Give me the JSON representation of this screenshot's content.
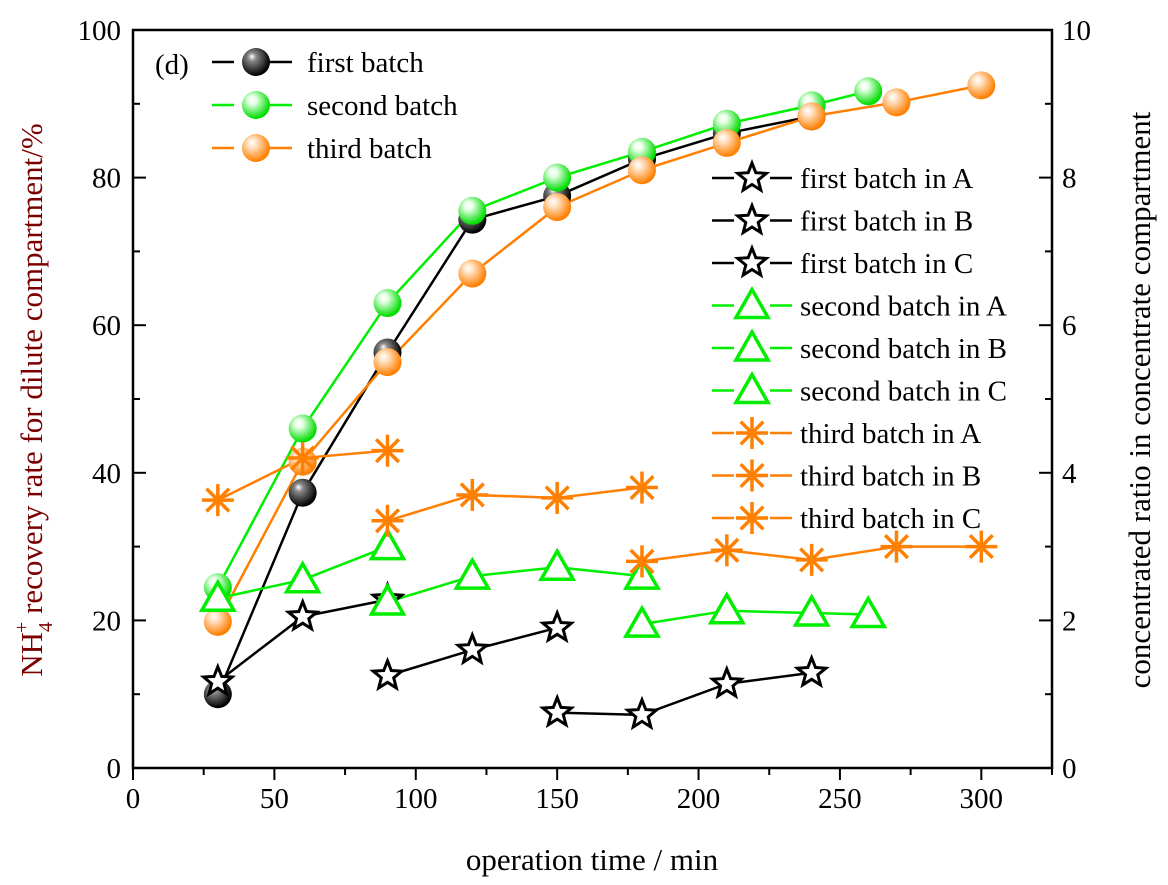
{
  "chart_data": {
    "type": "line",
    "panel_label": "(d)",
    "xlabel": "operation time / min",
    "ylabel_left_prefix": "NH",
    "ylabel_left_sub": "4",
    "ylabel_left_sup": "+",
    "ylabel_left_rest": " recovery rate for dilute compartment/%",
    "ylabel_right": "concentrated ratio in concentrate compartment",
    "xlim": [
      0,
      325
    ],
    "ylim_left": [
      0,
      100
    ],
    "ylim_right": [
      0,
      10
    ],
    "xticks": [
      0,
      50,
      100,
      150,
      200,
      250,
      300
    ],
    "yticks_left": [
      0,
      20,
      40,
      60,
      80,
      100
    ],
    "yticks_right": [
      0,
      2,
      4,
      6,
      8,
      10
    ],
    "grid": false,
    "colors": {
      "black": "#000000",
      "green": "#00ee00",
      "orange": "#ff7f00",
      "left_label": "#7a0000"
    },
    "series": [
      {
        "name": "first batch",
        "axis": "left",
        "color": "#000000",
        "marker": "sphere",
        "legend": 1,
        "points": [
          [
            30,
            10
          ],
          [
            60,
            37.3
          ],
          [
            90,
            56.3
          ],
          [
            120,
            74.3
          ],
          [
            150,
            77.5
          ],
          [
            180,
            82.5
          ],
          [
            210,
            86
          ],
          [
            240,
            88.3
          ]
        ]
      },
      {
        "name": "second batch",
        "axis": "left",
        "color": "#00ee00",
        "marker": "sphere",
        "legend": 1,
        "points": [
          [
            30,
            24.5
          ],
          [
            60,
            46
          ],
          [
            90,
            63
          ],
          [
            120,
            75.5
          ],
          [
            150,
            80
          ],
          [
            180,
            83.5
          ],
          [
            210,
            87.3
          ],
          [
            240,
            89.8
          ],
          [
            260,
            91.7
          ]
        ]
      },
      {
        "name": "third batch",
        "axis": "left",
        "color": "#ff7f00",
        "marker": "sphere",
        "legend": 1,
        "points": [
          [
            30,
            19.8
          ],
          [
            60,
            41.5
          ],
          [
            90,
            55
          ],
          [
            120,
            67
          ],
          [
            150,
            76
          ],
          [
            180,
            81
          ],
          [
            210,
            84.7
          ],
          [
            240,
            88.3
          ],
          [
            270,
            90.2
          ],
          [
            300,
            92.5
          ]
        ]
      },
      {
        "name": "first batch in A",
        "axis": "right",
        "color": "#000000",
        "marker": "star",
        "legend": 2,
        "points": [
          [
            30,
            1.17
          ],
          [
            60,
            2.05
          ],
          [
            90,
            2.28
          ]
        ]
      },
      {
        "name": "first batch in B",
        "axis": "right",
        "color": "#000000",
        "marker": "star",
        "legend": 2,
        "points": [
          [
            90,
            1.25
          ],
          [
            120,
            1.6
          ],
          [
            150,
            1.9
          ]
        ]
      },
      {
        "name": "first batch in C",
        "axis": "right",
        "color": "#000000",
        "marker": "star",
        "legend": 2,
        "points": [
          [
            150,
            0.75
          ],
          [
            180,
            0.72
          ],
          [
            210,
            1.14
          ],
          [
            240,
            1.29
          ]
        ]
      },
      {
        "name": "second batch in A",
        "axis": "right",
        "color": "#00ee00",
        "marker": "triangle",
        "legend": 2,
        "points": [
          [
            30,
            2.3
          ],
          [
            60,
            2.55
          ],
          [
            90,
            3.0
          ]
        ]
      },
      {
        "name": "second batch in B",
        "axis": "right",
        "color": "#00ee00",
        "marker": "triangle",
        "legend": 2,
        "points": [
          [
            90,
            2.25
          ],
          [
            120,
            2.6
          ],
          [
            150,
            2.72
          ],
          [
            180,
            2.6
          ]
        ]
      },
      {
        "name": "second batch in C",
        "axis": "right",
        "color": "#00ee00",
        "marker": "triangle",
        "legend": 2,
        "points": [
          [
            180,
            1.95
          ],
          [
            210,
            2.13
          ],
          [
            240,
            2.1
          ],
          [
            260,
            2.08
          ]
        ]
      },
      {
        "name": "third batch in A",
        "axis": "right",
        "color": "#ff7f00",
        "marker": "asterisk",
        "legend": 2,
        "points": [
          [
            30,
            3.63
          ],
          [
            60,
            4.2
          ],
          [
            90,
            4.3
          ]
        ]
      },
      {
        "name": "third batch in B",
        "axis": "right",
        "color": "#ff7f00",
        "marker": "asterisk",
        "legend": 2,
        "points": [
          [
            90,
            3.35
          ],
          [
            120,
            3.7
          ],
          [
            150,
            3.66
          ],
          [
            180,
            3.8
          ]
        ]
      },
      {
        "name": "third batch in C",
        "axis": "right",
        "color": "#ff7f00",
        "marker": "asterisk",
        "legend": 2,
        "points": [
          [
            180,
            2.8
          ],
          [
            210,
            2.95
          ],
          [
            240,
            2.82
          ],
          [
            270,
            3.0
          ],
          [
            300,
            3.0
          ]
        ]
      }
    ]
  }
}
